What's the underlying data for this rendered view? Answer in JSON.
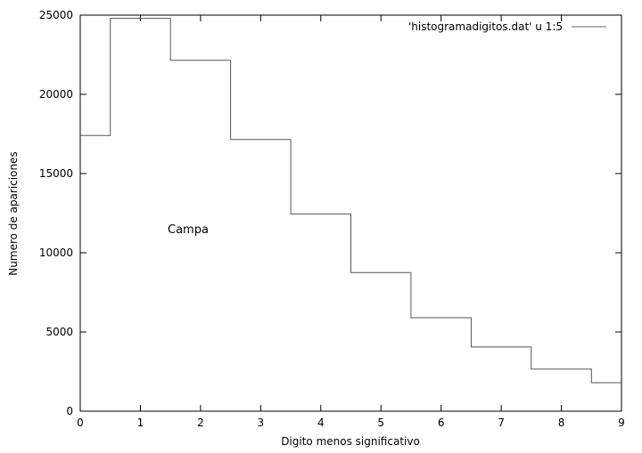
{
  "chart_data": {
    "type": "line",
    "style": "histogram-steps",
    "xlabel": "Digito menos significativo",
    "ylabel": "Numero de apariciones",
    "xlim": [
      0,
      9
    ],
    "ylim": [
      0,
      25000
    ],
    "xticks": [
      0,
      1,
      2,
      3,
      4,
      5,
      6,
      7,
      8,
      9
    ],
    "yticks": [
      0,
      5000,
      10000,
      15000,
      20000,
      25000
    ],
    "grid": false,
    "legend_position": "top-right",
    "annotation": "Campa",
    "series": [
      {
        "name": "'histogramadigitos.dat' u 1:5",
        "color": "#000000",
        "x": [
          0,
          1,
          2,
          3,
          4,
          5,
          6,
          7,
          8,
          9
        ],
        "y": [
          17400,
          24800,
          22150,
          17150,
          12450,
          8750,
          5900,
          4050,
          2650,
          1800
        ]
      }
    ]
  }
}
